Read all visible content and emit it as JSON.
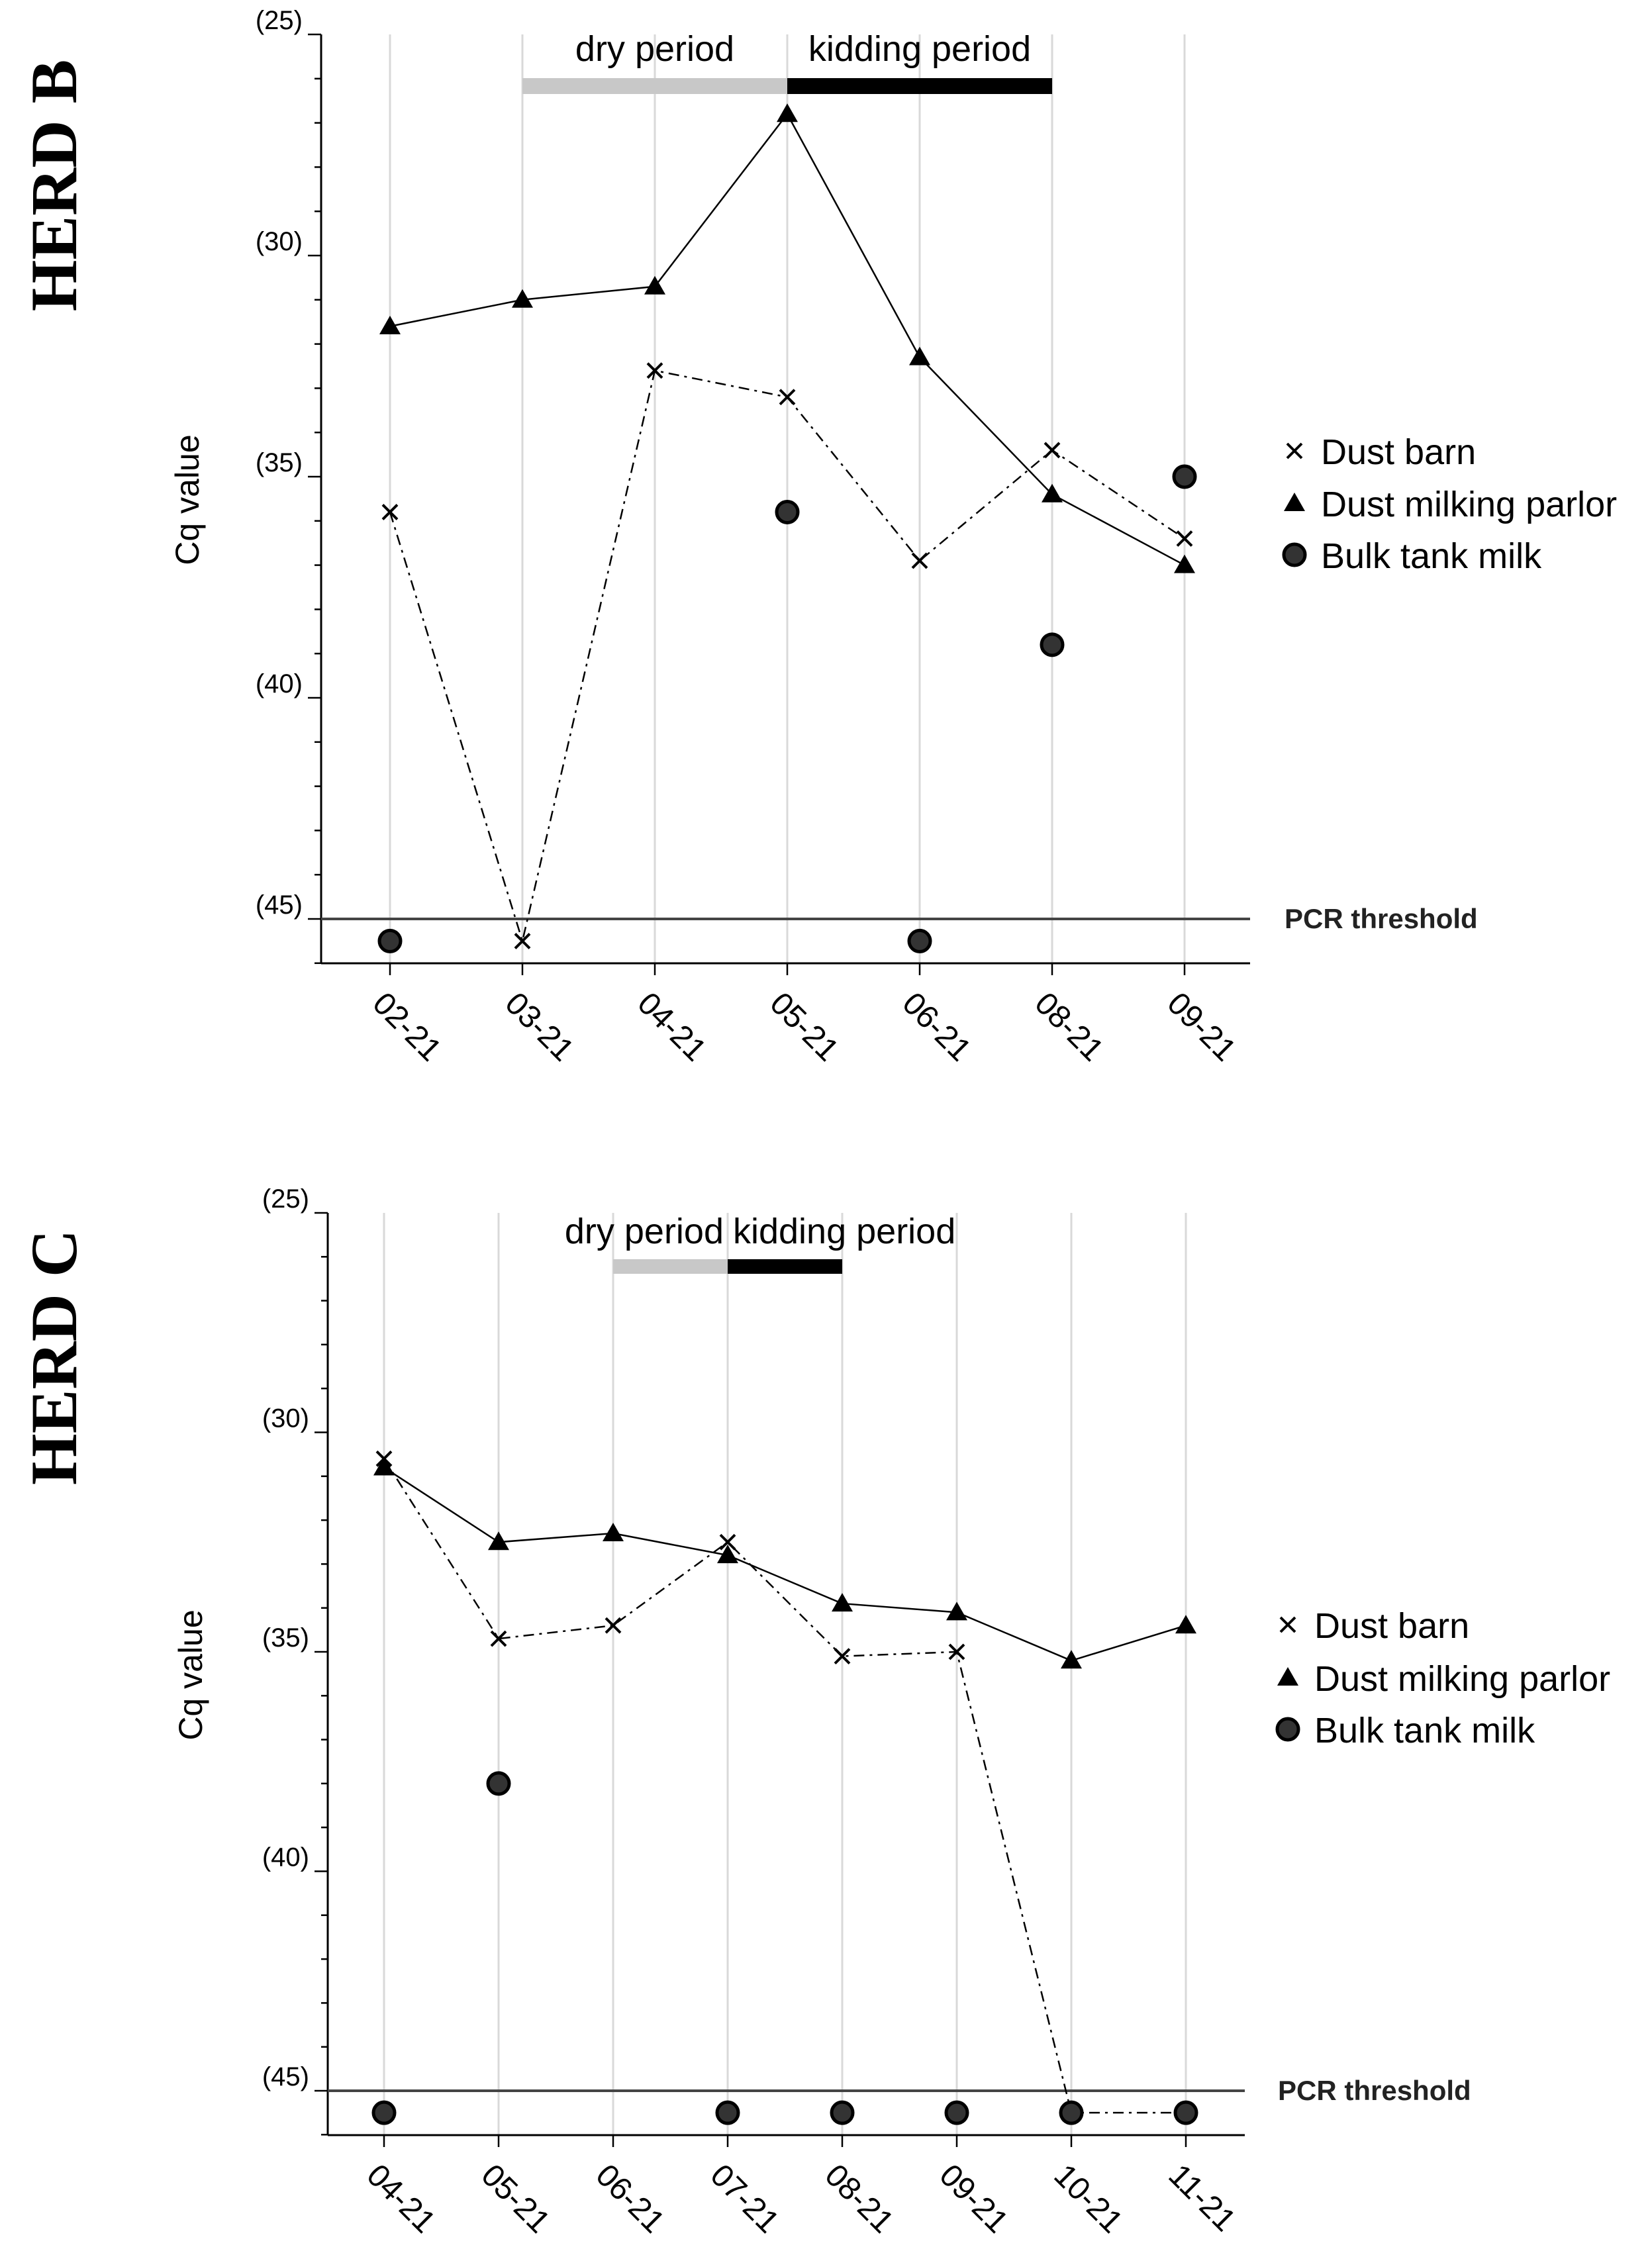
{
  "chart_data": [
    {
      "type": "line",
      "title": "HERD B",
      "ylabel": "Cq value",
      "ylim": [
        25,
        46
      ],
      "y_inverted": true,
      "yticks": [
        {
          "v": 25,
          "label": "(25)"
        },
        {
          "v": 30,
          "label": "(30)"
        },
        {
          "v": 35,
          "label": "(35)"
        },
        {
          "v": 40,
          "label": "(40)"
        },
        {
          "v": 45,
          "label": "(45)"
        }
      ],
      "categories": [
        "02-21",
        "03-21",
        "04-21",
        "05-21",
        "06-21",
        "08-21",
        "09-21"
      ],
      "threshold": {
        "value": 45,
        "label": "PCR threshold"
      },
      "periods": [
        {
          "label": "dry period",
          "from": 1,
          "to": 3,
          "color": "#c8c8c8"
        },
        {
          "label": "kidding period",
          "from": 3,
          "to": 5,
          "color": "#000000"
        }
      ],
      "series": [
        {
          "name": "Dust barn",
          "marker": "x",
          "line": "dashdot",
          "values": [
            35.8,
            45.5,
            32.6,
            33.2,
            36.9,
            34.4,
            36.4
          ]
        },
        {
          "name": "Dust milking parlor",
          "marker": "triangle",
          "line": "solid",
          "values": [
            31.6,
            31.0,
            30.7,
            26.8,
            32.3,
            35.4,
            37.0
          ]
        },
        {
          "name": "Bulk tank milk",
          "marker": "circle",
          "line": "none",
          "values": [
            45.5,
            null,
            null,
            35.8,
            45.5,
            38.8,
            35.0
          ]
        }
      ]
    },
    {
      "type": "line",
      "title": "HERD C",
      "ylabel": "Cq value",
      "ylim": [
        25,
        46
      ],
      "y_inverted": true,
      "yticks": [
        {
          "v": 25,
          "label": "(25)"
        },
        {
          "v": 30,
          "label": "(30)"
        },
        {
          "v": 35,
          "label": "(35)"
        },
        {
          "v": 40,
          "label": "(40)"
        },
        {
          "v": 45,
          "label": "(45)"
        }
      ],
      "categories": [
        "04-21",
        "05-21",
        "06-21",
        "07-21",
        "08-21",
        "09-21",
        "10-21",
        "11-21"
      ],
      "threshold": {
        "value": 45,
        "label": "PCR threshold"
      },
      "periods": [
        {
          "label": "dry period",
          "from": 2,
          "to": 3,
          "color": "#c8c8c8"
        },
        {
          "label": "kidding period",
          "from": 3,
          "to": 4,
          "color": "#000000"
        }
      ],
      "series": [
        {
          "name": "Dust barn",
          "marker": "x",
          "line": "dashdot",
          "values": [
            30.6,
            34.7,
            34.4,
            32.5,
            35.1,
            35.0,
            45.5,
            45.5
          ]
        },
        {
          "name": "Dust milking parlor",
          "marker": "triangle",
          "line": "solid",
          "values": [
            30.8,
            32.5,
            32.3,
            32.8,
            33.9,
            34.1,
            35.2,
            34.4
          ]
        },
        {
          "name": "Bulk tank milk",
          "marker": "circle",
          "line": "none",
          "values": [
            45.5,
            38.0,
            null,
            45.5,
            45.5,
            45.5,
            45.5,
            45.5
          ]
        }
      ]
    }
  ]
}
